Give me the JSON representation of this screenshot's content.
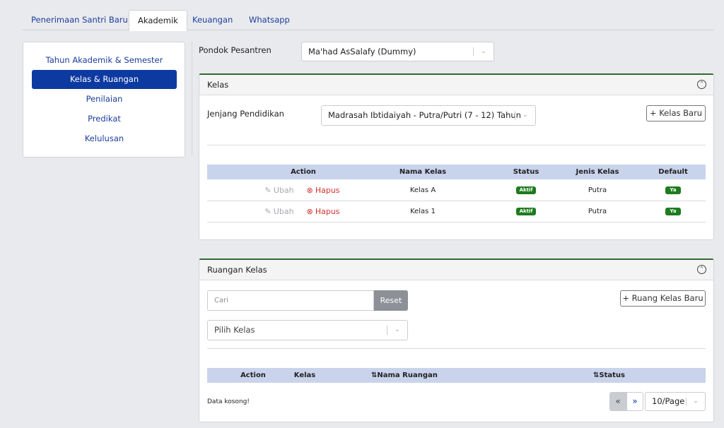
{
  "tabs": [
    {
      "label": "Penerimaan Santri Baru"
    },
    {
      "label": "Akademik"
    },
    {
      "label": "Keuangan"
    },
    {
      "label": "Whatsapp"
    }
  ],
  "menu": [
    {
      "label": "Tahun Akademik & Semester"
    },
    {
      "label": "Kelas & Ruangan"
    },
    {
      "label": "Penilaian"
    },
    {
      "label": "Predikat"
    },
    {
      "label": "Kelulusan"
    }
  ],
  "pondok": {
    "label": "Pondok Pesantren",
    "value": "Ma'had AsSalafy (Dummy)"
  },
  "kelas": {
    "title": "Kelas",
    "jenjang_label": "Jenjang Pendidikan",
    "jenjang_value": "Madrasah Ibtidaiyah - Putra/Putri (7 - 12) Tahun",
    "new_button": "Kelas Baru",
    "columns": [
      "Action",
      "Nama Kelas",
      "Status",
      "Jenis Kelas",
      "Default"
    ],
    "edit_label": "Ubah",
    "delete_label": "Hapus",
    "rows": [
      {
        "nama": "Kelas A",
        "status": "Aktif",
        "jenis": "Putra",
        "default": "Ya"
      },
      {
        "nama": "Kelas 1",
        "status": "Aktif",
        "jenis": "Putra",
        "default": "Ya"
      }
    ]
  },
  "ruangan": {
    "title": "Ruangan Kelas",
    "search_placeholder": "Cari",
    "reset_button": "Reset",
    "new_button": "Ruang Kelas Baru",
    "pilih_kelas_placeholder": "Pilih Kelas",
    "columns": [
      "Action",
      "Kelas",
      "Nama Ruangan",
      "Status"
    ],
    "empty_text": "Data kosong!",
    "page_size": "10/Page"
  },
  "colors": {
    "accent": "#0d3aa1",
    "panel_border": "#2e6b2f",
    "badge": "#1e7b1e",
    "danger": "#d0312d"
  }
}
